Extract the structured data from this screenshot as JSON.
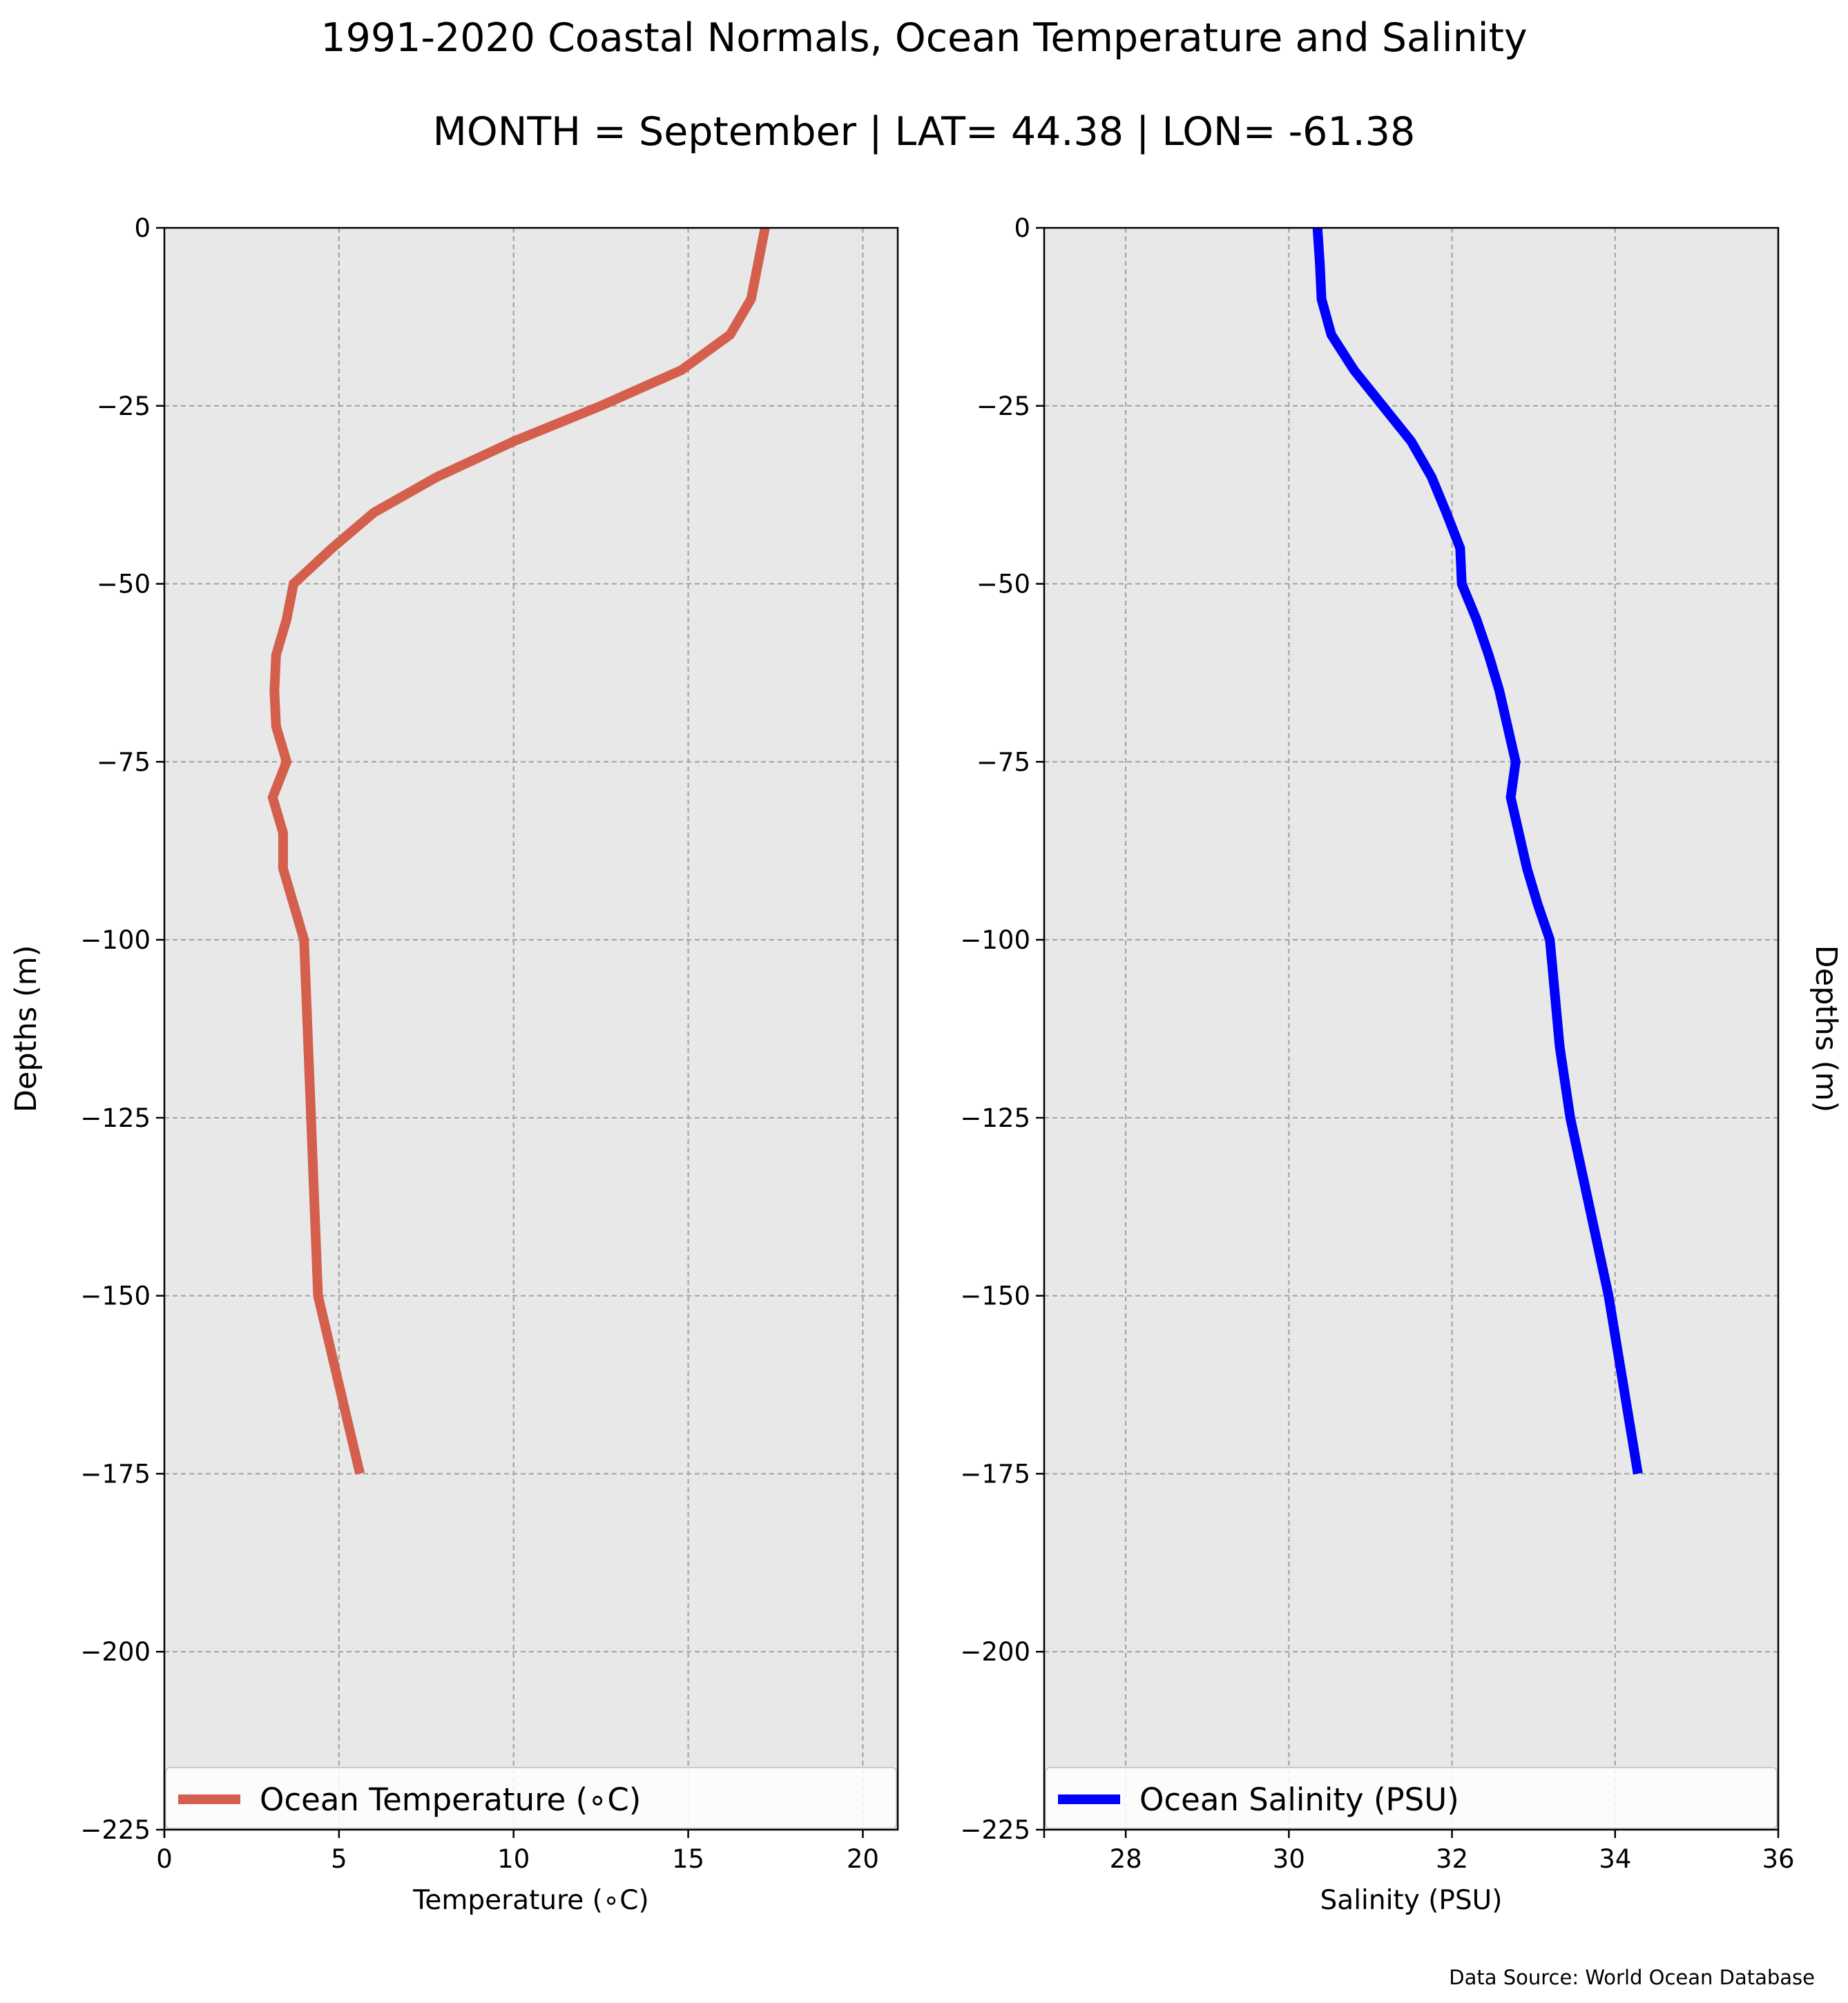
{
  "figure": {
    "title": "1991-2020 Coastal Normals, Ocean Temperature and Salinity",
    "subtitle": "MONTH = September | LAT= 44.38 | LON= -61.38",
    "footer": "Data Source: World Ocean Database"
  },
  "chart_data": [
    {
      "type": "line",
      "title": "",
      "xlabel": "Temperature (∘C)",
      "ylabel": "Depths (m)",
      "xlim": [
        0,
        21
      ],
      "ylim": [
        -225,
        0
      ],
      "xticks": [
        0,
        5,
        10,
        15,
        20
      ],
      "yticks": [
        0,
        -25,
        -50,
        -75,
        -100,
        -125,
        -150,
        -175,
        -200,
        -225
      ],
      "xtick_labels": [
        "0",
        "5",
        "10",
        "15",
        "20"
      ],
      "ytick_labels": [
        "0",
        "−25",
        "−50",
        "−75",
        "−100",
        "−125",
        "−150",
        "−175",
        "−200",
        "−225"
      ],
      "grid": true,
      "legend": "bottom",
      "series": [
        {
          "name": "Ocean Temperature (∘C)",
          "color": "#d45f4c",
          "x": [
            17.2,
            17.0,
            16.8,
            16.2,
            14.8,
            12.5,
            10.0,
            7.8,
            6.0,
            4.8,
            3.7,
            3.5,
            3.2,
            3.15,
            3.2,
            3.5,
            3.1,
            3.4,
            3.4,
            3.7,
            4.0,
            4.4,
            5.6
          ],
          "y": [
            0,
            -5,
            -10,
            -15,
            -20,
            -25,
            -30,
            -35,
            -40,
            -45,
            -50,
            -55,
            -60,
            -65,
            -70,
            -75,
            -80,
            -85,
            -90,
            -95,
            -100,
            -150,
            -175
          ]
        }
      ]
    },
    {
      "type": "line",
      "title": "",
      "xlabel": "Salinity (PSU)",
      "ylabel": "Depths (m)",
      "xlim": [
        27,
        36
      ],
      "ylim": [
        -225,
        0
      ],
      "xticks": [
        28,
        30,
        32,
        34,
        36
      ],
      "yticks": [
        0,
        -25,
        -50,
        -75,
        -100,
        -125,
        -150,
        -175,
        -200,
        -225
      ],
      "xtick_labels": [
        "28",
        "30",
        "32",
        "34",
        "36"
      ],
      "ytick_labels": [
        "0",
        "−25",
        "−50",
        "−75",
        "−100",
        "−125",
        "−150",
        "−175",
        "−200",
        "−225"
      ],
      "grid": true,
      "legend": "bottom",
      "series": [
        {
          "name": "Ocean Salinity (PSU)",
          "color": "#0000ff",
          "x": [
            30.35,
            30.38,
            30.4,
            30.52,
            30.8,
            31.15,
            31.5,
            31.75,
            31.93,
            32.1,
            32.12,
            32.3,
            32.45,
            32.58,
            32.68,
            32.78,
            32.72,
            32.82,
            32.92,
            33.05,
            33.2,
            33.32,
            33.45,
            33.92,
            34.28
          ],
          "y": [
            0,
            -5,
            -10,
            -15,
            -20,
            -25,
            -30,
            -35,
            -40,
            -45,
            -50,
            -55,
            -60,
            -65,
            -70,
            -75,
            -80,
            -85,
            -90,
            -95,
            -100,
            -115,
            -125,
            -150,
            -175
          ]
        }
      ]
    }
  ]
}
